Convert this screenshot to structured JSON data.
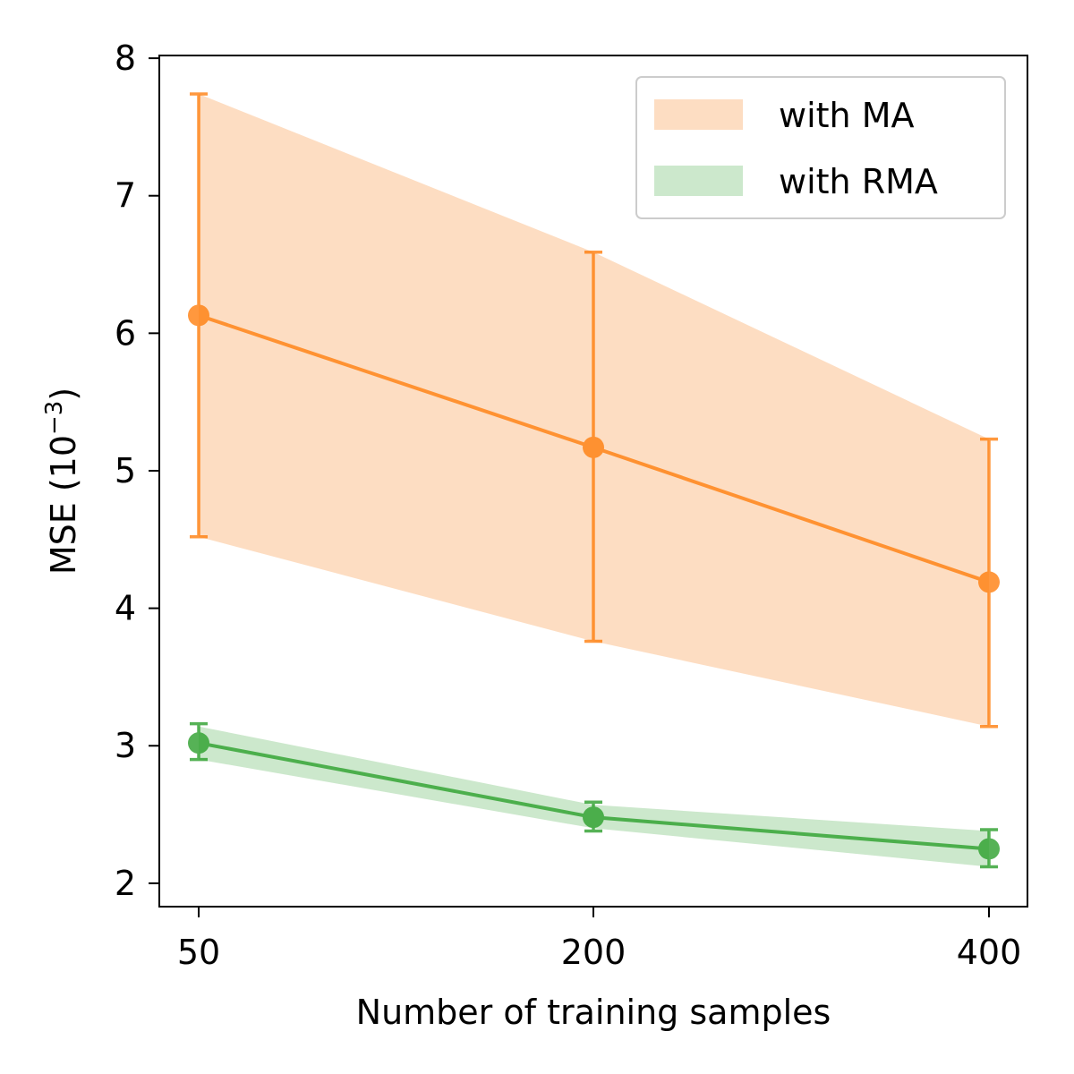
{
  "chart_data": {
    "type": "line",
    "title": "",
    "xlabel": "Number of training samples",
    "ylabel_main": "MSE (10",
    "ylabel_sup": "−3",
    "ylabel_close": ")",
    "x_categories": [
      "50",
      "200",
      "400"
    ],
    "ylim": [
      1.83,
      8.02
    ],
    "yticks": [
      2,
      3,
      4,
      5,
      6,
      7,
      8
    ],
    "ytick_labels": [
      "2",
      "3",
      "4",
      "5",
      "6",
      "7",
      "8"
    ],
    "legend_position": "top-right",
    "series": [
      {
        "name": "with MA",
        "color": "#ff7f0e",
        "fill_color": "#fdddc2",
        "values": [
          6.13,
          5.17,
          4.19
        ],
        "lower": [
          4.52,
          3.76,
          3.14
        ],
        "upper": [
          7.74,
          6.59,
          5.23
        ],
        "band_lower": [
          4.52,
          3.76,
          3.14
        ],
        "band_upper": [
          7.74,
          6.59,
          5.23
        ]
      },
      {
        "name": "with RMA",
        "color": "#2ca02c",
        "fill_color": "#cce8cc",
        "values": [
          3.02,
          2.48,
          2.25
        ],
        "lower": [
          2.9,
          2.38,
          2.12
        ],
        "upper": [
          3.16,
          2.59,
          2.39
        ],
        "band_lower": [
          2.9,
          2.4,
          2.12
        ],
        "band_upper": [
          3.14,
          2.57,
          2.38
        ]
      }
    ]
  }
}
